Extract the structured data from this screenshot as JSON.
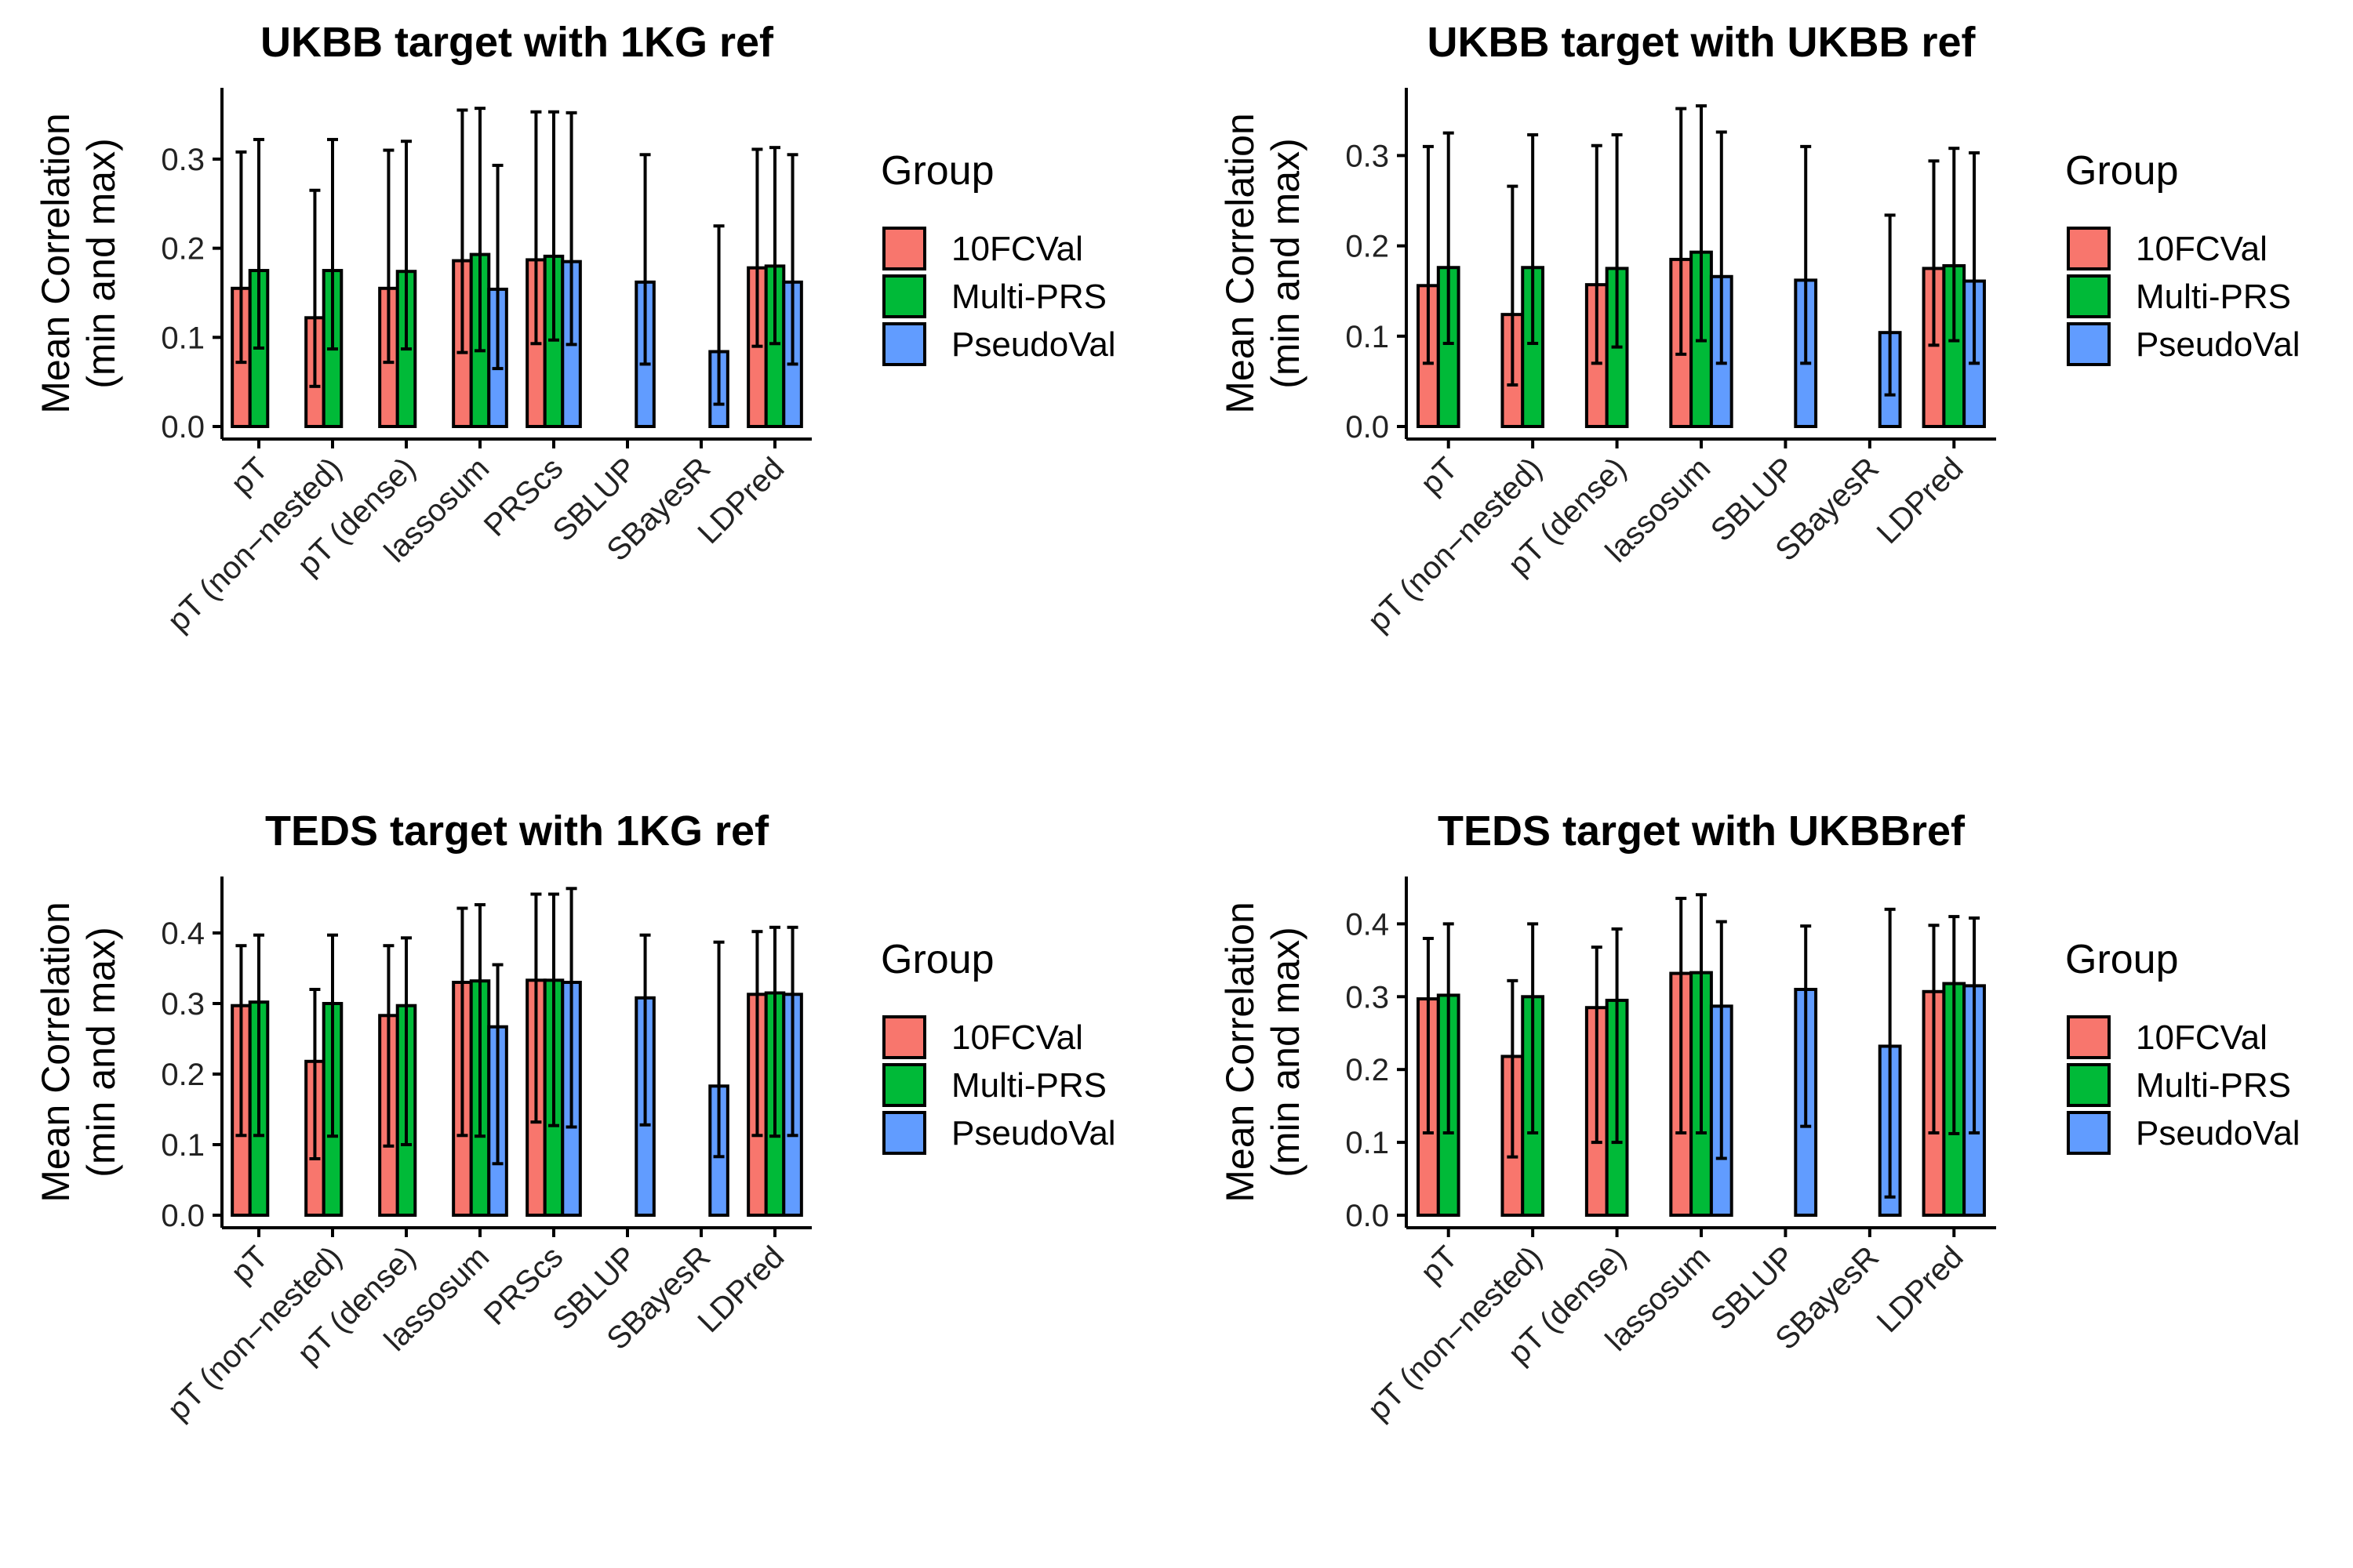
{
  "colors": {
    "10FCVal": "#F8766D",
    "Multi-PRS": "#00BA38",
    "PseudoVal": "#619CFF",
    "stroke": "#000000"
  },
  "chart_data": [
    {
      "type": "bar",
      "title": "UKBB target with 1KG ref",
      "ylabel_line1": "Mean Correlation",
      "ylabel_line2": "(min and max)",
      "legend_title": "Group",
      "legend_position": "right",
      "grid": false,
      "ylim": [
        0,
        0.38
      ],
      "yticks": [
        0.0,
        0.1,
        0.2,
        0.3
      ],
      "categories": [
        "pT",
        "pT (non−nested)",
        "pT (dense)",
        "lassosum",
        "PRScs",
        "SBLUP",
        "SBayesR",
        "LDPred"
      ],
      "series": [
        {
          "name": "10FCVal",
          "values": [
            0.155,
            0.122,
            0.155,
            0.186,
            0.187,
            null,
            null,
            0.178
          ],
          "min": [
            0.072,
            0.045,
            0.072,
            0.083,
            0.093,
            null,
            null,
            0.09
          ],
          "max": [
            0.308,
            0.265,
            0.31,
            0.355,
            0.353,
            null,
            null,
            0.311
          ]
        },
        {
          "name": "Multi-PRS",
          "values": [
            0.175,
            0.175,
            0.174,
            0.193,
            0.191,
            null,
            null,
            0.18
          ],
          "min": [
            0.088,
            0.087,
            0.087,
            0.085,
            0.097,
            null,
            null,
            0.093
          ],
          "max": [
            0.322,
            0.322,
            0.32,
            0.357,
            0.353,
            null,
            null,
            0.313
          ]
        },
        {
          "name": "PseudoVal",
          "values": [
            null,
            null,
            null,
            0.154,
            0.185,
            0.162,
            0.084,
            0.162
          ],
          "min": [
            null,
            null,
            null,
            0.065,
            0.092,
            0.07,
            0.025,
            0.07
          ],
          "max": [
            null,
            null,
            null,
            0.293,
            0.352,
            0.305,
            0.225,
            0.305
          ]
        }
      ]
    },
    {
      "type": "bar",
      "title": "UKBB target with UKBB ref",
      "ylabel_line1": "Mean Correlation",
      "ylabel_line2": "(min and max)",
      "legend_title": "Group",
      "legend_position": "right",
      "grid": false,
      "ylim": [
        0,
        0.375
      ],
      "yticks": [
        0.0,
        0.1,
        0.2,
        0.3
      ],
      "categories": [
        "pT",
        "pT (non−nested)",
        "pT (dense)",
        "lassosum",
        "SBLUP",
        "SBayesR",
        "LDPred"
      ],
      "series": [
        {
          "name": "10FCVal",
          "values": [
            0.156,
            0.124,
            0.157,
            0.185,
            null,
            null,
            0.175
          ],
          "min": [
            0.07,
            0.046,
            0.07,
            0.08,
            null,
            null,
            0.09
          ],
          "max": [
            0.31,
            0.266,
            0.311,
            0.352,
            null,
            null,
            0.294
          ]
        },
        {
          "name": "Multi-PRS",
          "values": [
            0.176,
            0.176,
            0.175,
            0.193,
            null,
            null,
            0.178
          ],
          "min": [
            0.092,
            0.092,
            0.088,
            0.095,
            null,
            null,
            0.095
          ],
          "max": [
            0.325,
            0.323,
            0.323,
            0.355,
            null,
            null,
            0.308
          ]
        },
        {
          "name": "PseudoVal",
          "values": [
            null,
            null,
            null,
            0.166,
            0.162,
            0.104,
            0.161
          ],
          "min": [
            null,
            null,
            null,
            0.07,
            0.07,
            0.035,
            0.07
          ],
          "max": [
            null,
            null,
            null,
            0.326,
            0.31,
            0.234,
            0.303
          ]
        }
      ]
    },
    {
      "type": "bar",
      "title": "TEDS target with 1KG ref",
      "ylabel_line1": "Mean Correlation",
      "ylabel_line2": "(min and max)",
      "legend_title": "Group",
      "legend_position": "right",
      "grid": false,
      "ylim": [
        0,
        0.48
      ],
      "yticks": [
        0.0,
        0.1,
        0.2,
        0.3,
        0.4
      ],
      "categories": [
        "pT",
        "pT (non−nested)",
        "pT (dense)",
        "lassosum",
        "PRScs",
        "SBLUP",
        "SBayesR",
        "LDPred"
      ],
      "series": [
        {
          "name": "10FCVal",
          "values": [
            0.297,
            0.218,
            0.283,
            0.33,
            0.333,
            null,
            null,
            0.313
          ],
          "min": [
            0.113,
            0.08,
            0.098,
            0.113,
            0.132,
            null,
            null,
            0.113
          ],
          "max": [
            0.382,
            0.32,
            0.382,
            0.435,
            0.455,
            null,
            null,
            0.402
          ]
        },
        {
          "name": "Multi-PRS",
          "values": [
            0.302,
            0.3,
            0.297,
            0.332,
            0.333,
            null,
            null,
            0.315
          ],
          "min": [
            0.113,
            0.112,
            0.1,
            0.112,
            0.127,
            null,
            null,
            0.112
          ],
          "max": [
            0.397,
            0.397,
            0.393,
            0.44,
            0.455,
            null,
            null,
            0.408
          ]
        },
        {
          "name": "PseudoVal",
          "values": [
            null,
            null,
            null,
            0.267,
            0.33,
            0.308,
            0.183,
            0.313
          ],
          "min": [
            null,
            null,
            null,
            0.073,
            0.125,
            0.128,
            0.083,
            0.113
          ],
          "max": [
            null,
            null,
            null,
            0.355,
            0.463,
            0.397,
            0.387,
            0.408
          ]
        }
      ]
    },
    {
      "type": "bar",
      "title": "TEDS target with UKBBref",
      "ylabel_line1": "Mean Correlation",
      "ylabel_line2": "(min and max)",
      "legend_title": "Group",
      "legend_position": "right",
      "grid": false,
      "ylim": [
        0,
        0.465
      ],
      "yticks": [
        0.0,
        0.1,
        0.2,
        0.3,
        0.4
      ],
      "categories": [
        "pT",
        "pT (non−nested)",
        "pT (dense)",
        "lassosum",
        "SBLUP",
        "SBayesR",
        "LDPred"
      ],
      "series": [
        {
          "name": "10FCVal",
          "values": [
            0.297,
            0.218,
            0.285,
            0.332,
            null,
            null,
            0.307
          ],
          "min": [
            0.113,
            0.08,
            0.1,
            0.113,
            null,
            null,
            0.113
          ],
          "max": [
            0.38,
            0.322,
            0.368,
            0.435,
            null,
            null,
            0.398
          ]
        },
        {
          "name": "Multi-PRS",
          "values": [
            0.302,
            0.3,
            0.295,
            0.333,
            null,
            null,
            0.318
          ],
          "min": [
            0.113,
            0.113,
            0.1,
            0.113,
            null,
            null,
            0.112
          ],
          "max": [
            0.4,
            0.4,
            0.393,
            0.44,
            null,
            null,
            0.41
          ]
        },
        {
          "name": "PseudoVal",
          "values": [
            null,
            null,
            null,
            0.287,
            0.31,
            0.232,
            0.315
          ],
          "min": [
            null,
            null,
            null,
            0.078,
            0.122,
            0.025,
            0.113
          ],
          "max": [
            null,
            null,
            null,
            0.403,
            0.397,
            0.42,
            0.408
          ]
        }
      ]
    }
  ]
}
